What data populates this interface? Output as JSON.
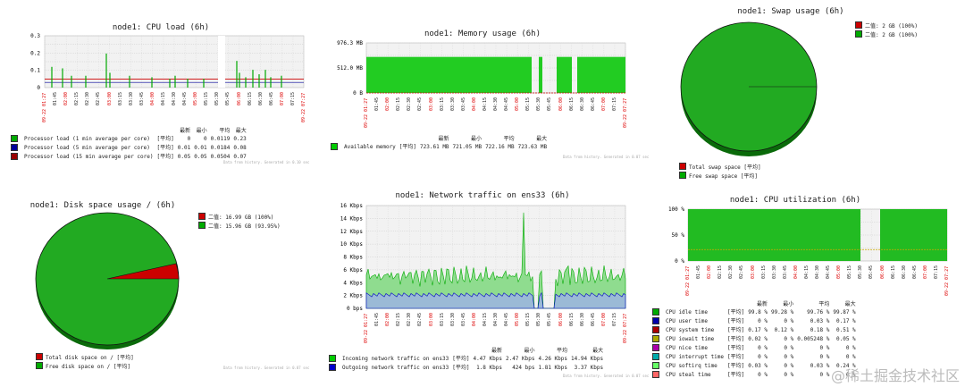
{
  "cpu_load": {
    "title": "node1: CPU load (6h)",
    "y_ticks": [
      "0.3",
      "0.2",
      "0.1",
      "0"
    ],
    "x_ticks": [
      "09-22 01:27",
      "01:45",
      "02:00",
      "02:15",
      "02:30",
      "02:45",
      "03:00",
      "03:15",
      "03:30",
      "03:45",
      "04:00",
      "04:15",
      "04:30",
      "04:45",
      "05:00",
      "05:15",
      "05:30",
      "05:45",
      "06:00",
      "06:15",
      "06:30",
      "06:45",
      "07:00",
      "07:15",
      "09-22 07:27"
    ],
    "headers": [
      "最新",
      "最小",
      "平均",
      "最大"
    ],
    "rows": [
      {
        "name": "Processor load (1 min average per core)",
        "agg": "[平均]",
        "last": "0",
        "min": "0",
        "avg": "0.0119",
        "max": "0.23",
        "color": "#00aa00"
      },
      {
        "name": "Processor load (5 min average per core)",
        "agg": "[平均]",
        "last": "0.01",
        "min": "0.01",
        "avg": "0.0184",
        "max": "0.08",
        "color": "#000099"
      },
      {
        "name": "Processor load (15 min average per core)",
        "agg": "[平均]",
        "last": "0.05",
        "min": "0.05",
        "avg": "0.0504",
        "max": "0.07",
        "color": "#990000"
      }
    ],
    "footer": "Data from history. Generated in 0.10 sec"
  },
  "memory": {
    "title": "node1: Memory usage (6h)",
    "y_ticks": [
      "976.3 MB",
      "512.0 MB",
      "0 B"
    ],
    "x_ticks": [
      "09-22 01:27",
      "01:45",
      "02:00",
      "02:15",
      "02:30",
      "02:45",
      "03:00",
      "03:15",
      "03:30",
      "03:45",
      "04:00",
      "04:15",
      "04:30",
      "04:45",
      "05:00",
      "05:15",
      "05:30",
      "05:45",
      "06:00",
      "06:15",
      "06:30",
      "06:45",
      "07:00",
      "07:15",
      "09-22 07:27"
    ],
    "headers": [
      "最新",
      "最小",
      "平均",
      "最大"
    ],
    "rows": [
      {
        "name": "Available memory",
        "agg": "[平均]",
        "last": "723.61 MB",
        "min": "721.05 MB",
        "avg": "722.16 MB",
        "max": "723.63 MB",
        "color": "#00cc00"
      }
    ],
    "footer": "Data from history. Generated in 0.07 sec"
  },
  "swap": {
    "title": "node1: Swap usage (6h)",
    "top_legend": [
      {
        "text": "二值: 2 GB (100%)",
        "color": "#cc0000"
      },
      {
        "text": "二值: 2 GB (100%)",
        "color": "#00aa00"
      }
    ],
    "rows": [
      {
        "name": "Total swap space",
        "agg": "[平均]",
        "color": "#cc0000"
      },
      {
        "name": "Free swap space",
        "agg": "[平均]",
        "color": "#00aa00"
      }
    ]
  },
  "disk": {
    "title": "node1: Disk space usage / (6h)",
    "top_legend": [
      {
        "text": "二值: 16.99 GB (100%)",
        "color": "#cc0000"
      },
      {
        "text": "二值: 15.96 GB (93.95%)",
        "color": "#00aa00"
      }
    ],
    "rows": [
      {
        "name": "Total disk space on /",
        "agg": "[平均]",
        "color": "#cc0000"
      },
      {
        "name": "Free disk space on /",
        "agg": "[平均]",
        "color": "#00aa00"
      }
    ],
    "footer": "Data from history. Generated in 0.07 sec"
  },
  "network": {
    "title": "node1: Network traffic on ens33 (6h)",
    "y_ticks": [
      "16 Kbps",
      "14 Kbps",
      "12 Kbps",
      "10 Kbps",
      "8 Kbps",
      "6 Kbps",
      "4 Kbps",
      "2 Kbps",
      "0 bps"
    ],
    "x_ticks": [
      "09-22 01:27",
      "01:45",
      "02:00",
      "02:15",
      "02:30",
      "02:45",
      "03:00",
      "03:15",
      "03:30",
      "03:45",
      "04:00",
      "04:15",
      "04:30",
      "04:45",
      "05:00",
      "05:15",
      "05:30",
      "05:45",
      "06:00",
      "06:15",
      "06:30",
      "06:45",
      "07:00",
      "07:15",
      "09-22 07:27"
    ],
    "headers": [
      "最新",
      "最小",
      "平均",
      "最大"
    ],
    "rows": [
      {
        "name": "Incoming network traffic on ens33",
        "agg": "[平均]",
        "last": "4.47 Kbps",
        "min": "2.47 Kbps",
        "avg": "4.26 Kbps",
        "max": "14.94 Kbps",
        "color": "#00cc00"
      },
      {
        "name": "Outgoing network traffic on ens33",
        "agg": "[平均]",
        "last": "1.8 Kbps",
        "min": "424 bps",
        "avg": "1.81 Kbps",
        "max": "3.37 Kbps",
        "color": "#0000cc"
      }
    ],
    "footer": "Data from history. Generated in 0.07 sec"
  },
  "cpu_util": {
    "title": "node1: CPU utilization (6h)",
    "y_ticks": [
      "100 %",
      "50 %",
      "0 %"
    ],
    "x_ticks": [
      "09-22 01:27",
      "01:45",
      "02:00",
      "02:15",
      "02:30",
      "02:45",
      "03:00",
      "03:15",
      "03:30",
      "03:45",
      "04:00",
      "04:15",
      "04:30",
      "04:45",
      "05:00",
      "05:15",
      "05:30",
      "05:45",
      "06:00",
      "06:15",
      "06:30",
      "06:45",
      "07:00",
      "07:15",
      "09-22 07:27"
    ],
    "headers": [
      "最新",
      "最小",
      "平均",
      "最大"
    ],
    "rows": [
      {
        "name": "CPU idle time",
        "agg": "[平均]",
        "last": "99.8 %",
        "min": "99.28 %",
        "avg": "99.76 %",
        "max": "99.87 %",
        "color": "#00aa00"
      },
      {
        "name": "CPU user time",
        "agg": "[平均]",
        "last": "0 %",
        "min": "0 %",
        "avg": "0.03 %",
        "max": "0.17 %",
        "color": "#0000aa"
      },
      {
        "name": "CPU system time",
        "agg": "[平均]",
        "last": "0.17 %",
        "min": "0.12 %",
        "avg": "0.18 %",
        "max": "0.51 %",
        "color": "#aa0000"
      },
      {
        "name": "CPU iowait time",
        "agg": "[平均]",
        "last": "0.02 %",
        "min": "0 %",
        "avg": "0.005248 %",
        "max": "0.05 %",
        "color": "#aaaa00"
      },
      {
        "name": "CPU nice time",
        "agg": "[平均]",
        "last": "0 %",
        "min": "0 %",
        "avg": "0 %",
        "max": "0 %",
        "color": "#aa00aa"
      },
      {
        "name": "CPU interrupt time",
        "agg": "[平均]",
        "last": "0 %",
        "min": "0 %",
        "avg": "0 %",
        "max": "0 %",
        "color": "#00aaaa"
      },
      {
        "name": "CPU softirq time",
        "agg": "[平均]",
        "last": "0.03 %",
        "min": "0 %",
        "avg": "0.03 %",
        "max": "0.24 %",
        "color": "#66ff66"
      },
      {
        "name": "CPU steal time",
        "agg": "[平均]",
        "last": "0 %",
        "min": "0 %",
        "avg": "0 %",
        "max": "0 %",
        "color": "#ff6666"
      }
    ]
  },
  "watermark": "@稀土掘金技术社区"
}
